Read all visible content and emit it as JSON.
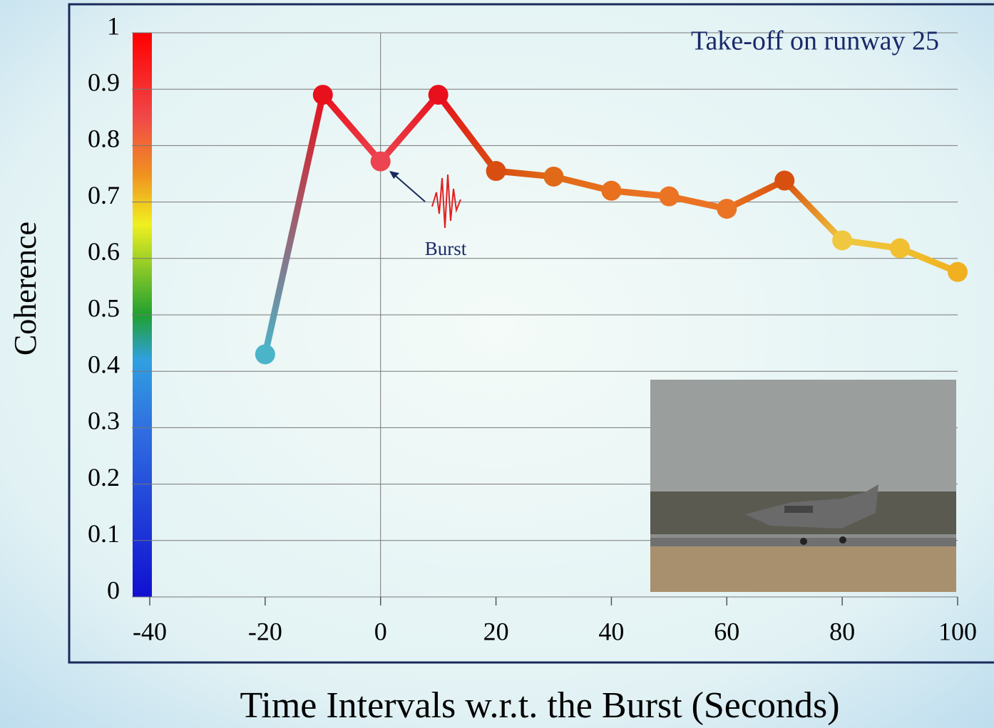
{
  "chart_data": {
    "type": "line",
    "annotation": "Take-off on runway 25",
    "burst_label": "Burst",
    "xlabel": "Time Intervals w.r.t. the Burst (Seconds)",
    "ylabel": "Coherence",
    "x": [
      -20,
      -10,
      0,
      10,
      20,
      30,
      40,
      50,
      60,
      70,
      80,
      90,
      100
    ],
    "values": [
      0.43,
      0.89,
      0.772,
      0.89,
      0.755,
      0.745,
      0.72,
      0.71,
      0.688,
      0.738,
      0.632,
      0.618,
      0.576
    ],
    "colors": [
      "#4bb4c8",
      "#e8101c",
      "#ec4450",
      "#e8101c",
      "#d84e10",
      "#e06a18",
      "#e8701e",
      "#ea7424",
      "#ea7424",
      "#d85010",
      "#f0c840",
      "#f0c030",
      "#f0b020"
    ],
    "xlim": [
      -40,
      100
    ],
    "xticks": [
      -40,
      -20,
      0,
      20,
      40,
      60,
      80,
      100
    ],
    "ylim": [
      0,
      1
    ],
    "yticks": [
      0,
      0.1,
      0.2,
      0.3,
      0.4,
      0.5,
      0.6,
      0.7,
      0.8,
      0.9,
      1
    ],
    "grid": true
  }
}
